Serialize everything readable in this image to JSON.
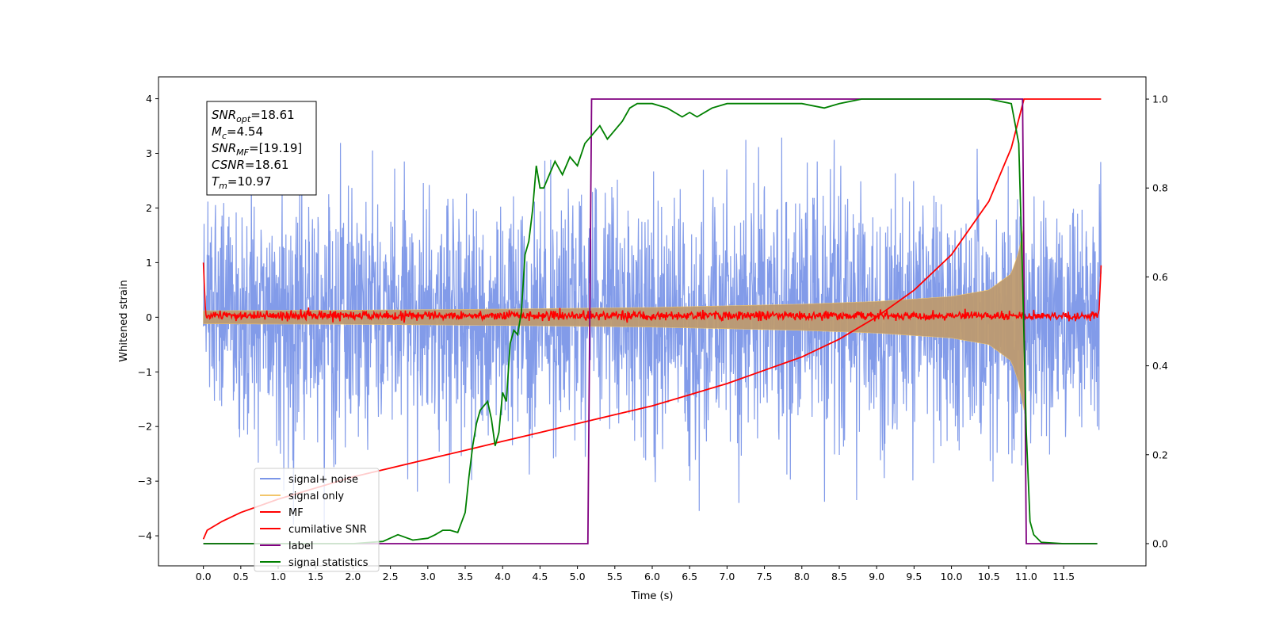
{
  "chart_data": {
    "type": "line",
    "title": "",
    "xlabel": "Time (s)",
    "ylabel": "Whitened strain",
    "ylabel_right": "",
    "xlim": [
      -0.6,
      12.6
    ],
    "ylim": [
      -4.55,
      4.4
    ],
    "y2lim": [
      -0.05,
      1.05
    ],
    "grid": false,
    "legend_position": "lower-left",
    "x_ticks": [
      0.0,
      0.5,
      1.0,
      1.5,
      2.0,
      2.5,
      3.0,
      3.5,
      4.0,
      4.5,
      5.0,
      5.5,
      6.0,
      6.5,
      7.0,
      7.5,
      8.0,
      8.5,
      9.0,
      9.5,
      10.0,
      10.5,
      11.0,
      11.5
    ],
    "x_tick_labels": [
      "0.0",
      "0.5",
      "1.0",
      "1.5",
      "2.0",
      "2.5",
      "3.0",
      "3.5",
      "4.0",
      "4.5",
      "5.0",
      "5.5",
      "6.0",
      "6.5",
      "7.0",
      "7.5",
      "8.0",
      "8.5",
      "9.0",
      "9.5",
      "10.0",
      "10.5",
      "11.0",
      "11.5"
    ],
    "y_ticks": [
      4,
      3,
      2,
      1,
      0,
      -1,
      -2,
      -3,
      -4
    ],
    "y_tick_labels": [
      "4",
      "3",
      "2",
      "1",
      "0",
      "−1",
      "−2",
      "−3",
      "−4"
    ],
    "y2_ticks": [
      1.0,
      0.8,
      0.6,
      0.4,
      0.2,
      0.0
    ],
    "y2_tick_labels": [
      "1.0",
      "0.8",
      "0.6",
      "0.4",
      "0.2",
      "0.0"
    ],
    "annotation_lines": [
      {
        "main": "SNR",
        "sub": "opt",
        "rest": "=18.61"
      },
      {
        "main": "M",
        "sub": "c",
        "rest": "=4.54"
      },
      {
        "main": "SNR",
        "sub": "MF",
        "rest": "=[19.19]"
      },
      {
        "main": "CSNR",
        "sub": "",
        "rest": "=18.61"
      },
      {
        "main": "T",
        "sub": "m",
        "rest": "=10.97"
      }
    ],
    "series": [
      {
        "name": "signal+ noise",
        "color": "#7b96e8",
        "axis": "left",
        "kind": "noise",
        "x_range": [
          0.0,
          12.0
        ],
        "envelope_typical": 2.2,
        "envelope_peak": 3.8
      },
      {
        "name": "signal only",
        "color": "#f2c66b",
        "axis": "left",
        "kind": "chirp",
        "x_range": [
          0.0,
          10.97
        ],
        "envelope": {
          "x": [
            0.0,
            2.0,
            4.0,
            6.0,
            8.0,
            9.0,
            10.0,
            10.5,
            10.8,
            10.9,
            10.97
          ],
          "y": [
            0.12,
            0.13,
            0.15,
            0.18,
            0.24,
            0.29,
            0.38,
            0.5,
            0.8,
            1.2,
            1.7
          ]
        }
      },
      {
        "name": "MF",
        "color": "#ff0000",
        "axis": "left",
        "kind": "mf",
        "x_range": [
          0.0,
          12.0
        ],
        "noise_amplitude": 0.06
      },
      {
        "name": "cumilative SNR",
        "color": "#ff0000",
        "axis": "right",
        "x": [
          0.0,
          0.05,
          0.25,
          0.5,
          1.0,
          1.5,
          2.0,
          2.5,
          3.0,
          3.5,
          4.0,
          4.5,
          5.0,
          5.5,
          6.0,
          6.5,
          7.0,
          7.5,
          8.0,
          8.5,
          9.0,
          9.5,
          10.0,
          10.5,
          10.8,
          10.97,
          11.0,
          12.0
        ],
        "y": [
          0.01,
          0.03,
          0.05,
          0.07,
          0.1,
          0.125,
          0.15,
          0.17,
          0.19,
          0.21,
          0.23,
          0.25,
          0.27,
          0.29,
          0.31,
          0.335,
          0.36,
          0.39,
          0.42,
          0.46,
          0.51,
          0.57,
          0.65,
          0.77,
          0.89,
          1.0,
          1.0,
          1.0
        ]
      },
      {
        "name": "label",
        "color": "#800080",
        "axis": "right",
        "x": [
          0.0,
          5.14,
          5.19,
          10.95,
          11.0,
          11.95
        ],
        "y": [
          0.0,
          0.0,
          1.0,
          1.0,
          0.0,
          0.0
        ]
      },
      {
        "name": "signal statistics",
        "color": "#008000",
        "axis": "right",
        "x": [
          0.0,
          1.0,
          2.0,
          2.4,
          2.6,
          2.8,
          3.0,
          3.1,
          3.2,
          3.3,
          3.4,
          3.5,
          3.55,
          3.6,
          3.65,
          3.7,
          3.8,
          3.85,
          3.9,
          3.95,
          4.0,
          4.05,
          4.1,
          4.15,
          4.2,
          4.25,
          4.3,
          4.35,
          4.4,
          4.45,
          4.5,
          4.55,
          4.6,
          4.7,
          4.8,
          4.9,
          5.0,
          5.1,
          5.2,
          5.3,
          5.4,
          5.5,
          5.6,
          5.7,
          5.8,
          6.0,
          6.2,
          6.4,
          6.5,
          6.6,
          6.8,
          7.0,
          7.2,
          7.5,
          8.0,
          8.3,
          8.5,
          8.8,
          9.0,
          9.5,
          10.0,
          10.5,
          10.8,
          10.9,
          10.95,
          11.0,
          11.05,
          11.1,
          11.2,
          11.5,
          11.95
        ],
        "y": [
          0.0,
          0.0,
          0.0,
          0.005,
          0.02,
          0.008,
          0.012,
          0.02,
          0.03,
          0.03,
          0.025,
          0.07,
          0.15,
          0.22,
          0.27,
          0.3,
          0.32,
          0.28,
          0.22,
          0.25,
          0.34,
          0.32,
          0.45,
          0.48,
          0.47,
          0.52,
          0.65,
          0.68,
          0.75,
          0.85,
          0.8,
          0.8,
          0.82,
          0.86,
          0.83,
          0.87,
          0.85,
          0.9,
          0.92,
          0.94,
          0.91,
          0.93,
          0.95,
          0.98,
          0.99,
          0.99,
          0.98,
          0.96,
          0.97,
          0.96,
          0.98,
          0.99,
          0.99,
          0.99,
          0.99,
          0.98,
          0.99,
          1.0,
          1.0,
          1.0,
          1.0,
          1.0,
          0.99,
          0.9,
          0.6,
          0.25,
          0.05,
          0.02,
          0.003,
          0.0,
          0.0
        ]
      }
    ]
  }
}
